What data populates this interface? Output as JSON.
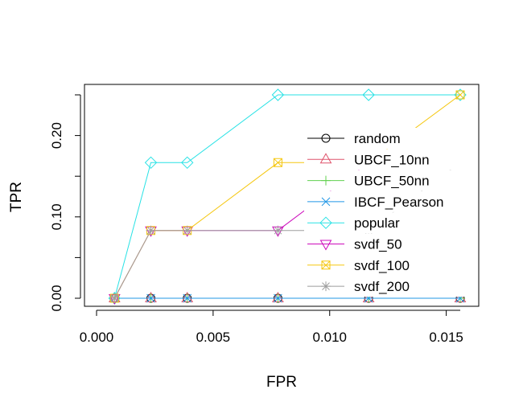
{
  "chart_data": {
    "type": "line",
    "title": "",
    "xlabel": "FPR",
    "ylabel": "TPR",
    "xlim": [
      0.0,
      0.0156
    ],
    "ylim": [
      0.0,
      0.25
    ],
    "xticks": [
      0.0,
      0.005,
      0.01,
      0.015
    ],
    "xtick_labels": [
      "0.000",
      "0.005",
      "0.010",
      "0.015"
    ],
    "yticks": [
      0.0,
      0.1,
      0.2
    ],
    "ytick_labels": [
      "0.00",
      "0.10",
      "0.20"
    ],
    "grid": false,
    "legend_position": "right",
    "series": [
      {
        "name": "random",
        "color": "#000000",
        "marker": "circle",
        "points": [
          [
            0.00077,
            0
          ],
          [
            0.00233,
            0
          ],
          [
            0.00389,
            0
          ],
          [
            0.00778,
            0
          ],
          [
            0.01167,
            0
          ],
          [
            0.0156,
            0
          ]
        ]
      },
      {
        "name": "UBCF_10nn",
        "color": "#DF536B",
        "marker": "triangle-up",
        "points": [
          [
            0.00077,
            0
          ],
          [
            0.00233,
            0
          ],
          [
            0.00389,
            0
          ],
          [
            0.00778,
            0
          ],
          [
            0.01167,
            0
          ],
          [
            0.0156,
            0
          ]
        ]
      },
      {
        "name": "UBCF_50nn",
        "color": "#61D04F",
        "marker": "plus",
        "points": [
          [
            0.00077,
            0
          ],
          [
            0.00233,
            0
          ],
          [
            0.00389,
            0
          ],
          [
            0.00778,
            0
          ],
          [
            0.01167,
            0
          ],
          [
            0.0156,
            0
          ]
        ]
      },
      {
        "name": "IBCF_Pearson",
        "color": "#2297E6",
        "marker": "x",
        "points": [
          [
            0.00077,
            0
          ],
          [
            0.00233,
            0
          ],
          [
            0.00389,
            0
          ],
          [
            0.00778,
            0
          ],
          [
            0.01167,
            0
          ],
          [
            0.0156,
            0
          ]
        ]
      },
      {
        "name": "popular",
        "color": "#28E2E5",
        "marker": "diamond",
        "points": [
          [
            0.00077,
            0
          ],
          [
            0.00233,
            0.1667
          ],
          [
            0.00389,
            0.1667
          ],
          [
            0.00778,
            0.25
          ],
          [
            0.01167,
            0.25
          ],
          [
            0.0156,
            0.25
          ]
        ]
      },
      {
        "name": "svdf_50",
        "color": "#CD0BBC",
        "marker": "triangle-down",
        "points": [
          [
            0.00077,
            0
          ],
          [
            0.00233,
            0.0833
          ],
          [
            0.00389,
            0.0833
          ],
          [
            0.00778,
            0.0833
          ],
          [
            0.01167,
            0.1667
          ],
          [
            0.0156,
            0.1667
          ]
        ]
      },
      {
        "name": "svdf_100",
        "color": "#F5C710",
        "marker": "boxed-x",
        "points": [
          [
            0.00077,
            0
          ],
          [
            0.00233,
            0.0833
          ],
          [
            0.00389,
            0.0833
          ],
          [
            0.00778,
            0.1667
          ],
          [
            0.01167,
            0.1667
          ],
          [
            0.0156,
            0.25
          ]
        ]
      },
      {
        "name": "svdf_200",
        "color": "#9E9E9E",
        "marker": "asterisk",
        "points": [
          [
            0.00077,
            0
          ],
          [
            0.00233,
            0.0833
          ],
          [
            0.00389,
            0.0833
          ],
          [
            0.00778,
            0.0833
          ],
          [
            0.01167,
            0.0833
          ],
          [
            0.0156,
            0.1667
          ]
        ]
      }
    ]
  }
}
